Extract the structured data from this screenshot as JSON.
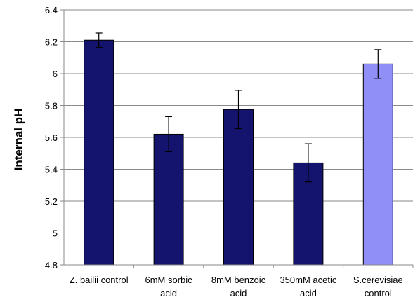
{
  "chart_data": {
    "type": "bar",
    "title": "",
    "xlabel": "",
    "ylabel": "Internal  pH",
    "ylim": [
      4.8,
      6.4
    ],
    "yticks": [
      "4.8",
      "5",
      "5.2",
      "5.4",
      "5.6",
      "5.8",
      "6",
      "6.2",
      "6.4"
    ],
    "grid": true,
    "legend": "none",
    "categories": [
      [
        "Z. bailii control"
      ],
      [
        "6mM sorbic",
        "acid"
      ],
      [
        "8mM benzoic",
        "acid"
      ],
      [
        "350mM acetic",
        "acid"
      ],
      [
        "S.cerevisiae",
        "control"
      ]
    ],
    "values": [
      6.21,
      5.62,
      5.775,
      5.44,
      6.06
    ],
    "errors": [
      0.045,
      0.11,
      0.12,
      0.12,
      0.09
    ],
    "colors": [
      "#14146e",
      "#14146e",
      "#14146e",
      "#14146e",
      "#8f8ff7"
    ]
  }
}
